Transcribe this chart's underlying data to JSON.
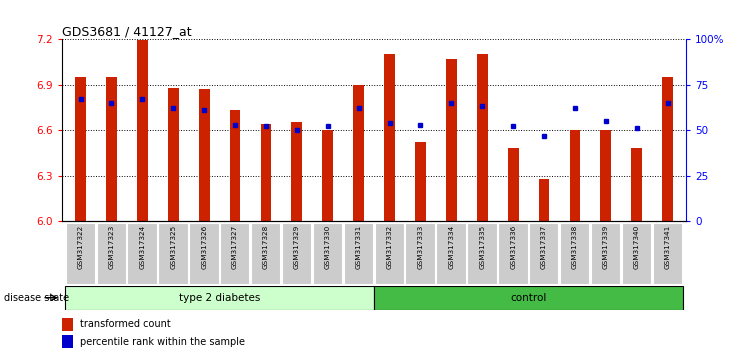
{
  "title": "GDS3681 / 41127_at",
  "samples": [
    "GSM317322",
    "GSM317323",
    "GSM317324",
    "GSM317325",
    "GSM317326",
    "GSM317327",
    "GSM317328",
    "GSM317329",
    "GSM317330",
    "GSM317331",
    "GSM317332",
    "GSM317333",
    "GSM317334",
    "GSM317335",
    "GSM317336",
    "GSM317337",
    "GSM317338",
    "GSM317339",
    "GSM317340",
    "GSM317341"
  ],
  "bar_values": [
    6.95,
    6.95,
    7.19,
    6.88,
    6.87,
    6.73,
    6.64,
    6.65,
    6.6,
    6.9,
    7.1,
    6.52,
    7.07,
    7.1,
    6.48,
    6.28,
    6.6,
    6.6,
    6.48,
    6.95
  ],
  "pct_values": [
    67,
    65,
    67,
    62,
    61,
    53,
    52,
    50,
    52,
    62,
    54,
    53,
    65,
    63,
    52,
    47,
    62,
    55,
    51,
    65
  ],
  "bar_color": "#cc2200",
  "dot_color": "#0000cc",
  "ymin": 6.0,
  "ymax": 7.2,
  "yticks": [
    6.0,
    6.3,
    6.6,
    6.9,
    7.2
  ],
  "pct_ticks": [
    0,
    25,
    50,
    75,
    100
  ],
  "group1_label": "type 2 diabetes",
  "group1_samples": 10,
  "group2_label": "control",
  "group2_samples": 10,
  "group_label": "disease state",
  "legend_bar": "transformed count",
  "legend_dot": "percentile rank within the sample",
  "bg_color": "#ffffff",
  "tick_label_bg": "#cccccc",
  "group1_bg": "#ccffcc",
  "group2_bg": "#44bb44"
}
